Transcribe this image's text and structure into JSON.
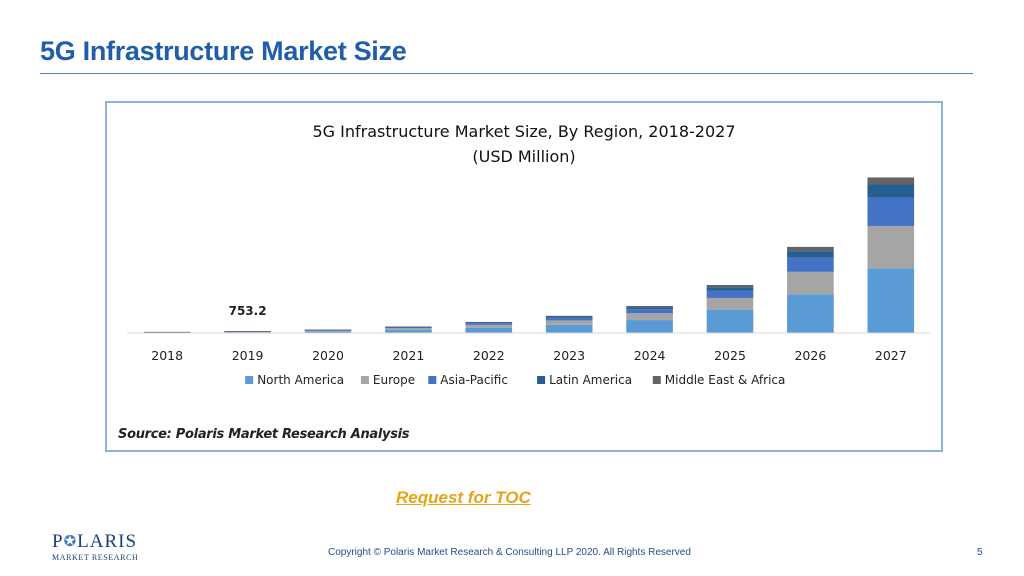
{
  "slide": {
    "title": "5G Infrastructure Market Size",
    "toc_link": "Request for TOC",
    "copyright": "Copyright © Polaris Market Research & Consulting LLP 2020. All Rights Reserved",
    "page_number": "5",
    "logo_word_pre": "P",
    "logo_word_post": "LARIS",
    "logo_sub": "MARKET RESEARCH"
  },
  "chart_data": {
    "type": "bar",
    "stacked": true,
    "title": "5G Infrastructure Market Size, By Region, 2018-2027",
    "subtitle": "(USD Million)",
    "source": "Source: Polaris Market Research Analysis",
    "categories": [
      "2018",
      "2019",
      "2020",
      "2021",
      "2022",
      "2023",
      "2024",
      "2025",
      "2026",
      "2027"
    ],
    "series": [
      {
        "name": "North America",
        "color": "#5b9bd5",
        "values": [
          220,
          360,
          700,
          1320,
          2250,
          3500,
          5500,
          9800,
          16500,
          27500
        ]
      },
      {
        "name": "Europe",
        "color": "#a5a5a5",
        "values": [
          120,
          190,
          370,
          700,
          1200,
          1850,
          2900,
          5100,
          9500,
          18000
        ]
      },
      {
        "name": "Asia-Pacific",
        "color": "#4472c4",
        "values": [
          70,
          110,
          220,
          410,
          700,
          1100,
          1700,
          3000,
          6000,
          12000
        ]
      },
      {
        "name": "Latin America",
        "color": "#255e91",
        "values": [
          40,
          60,
          110,
          210,
          360,
          560,
          900,
          1600,
          2800,
          5600
        ]
      },
      {
        "name": "Middle East & Africa",
        "color": "#636363",
        "values": [
          20,
          33,
          60,
          110,
          190,
          290,
          500,
          900,
          1800,
          3000
        ]
      }
    ],
    "data_labels": [
      {
        "category": "2019",
        "text": "753.2"
      }
    ],
    "ylim": [
      0,
      68000
    ],
    "legend": "bottom",
    "grid": false,
    "xlabel": "",
    "ylabel": ""
  }
}
